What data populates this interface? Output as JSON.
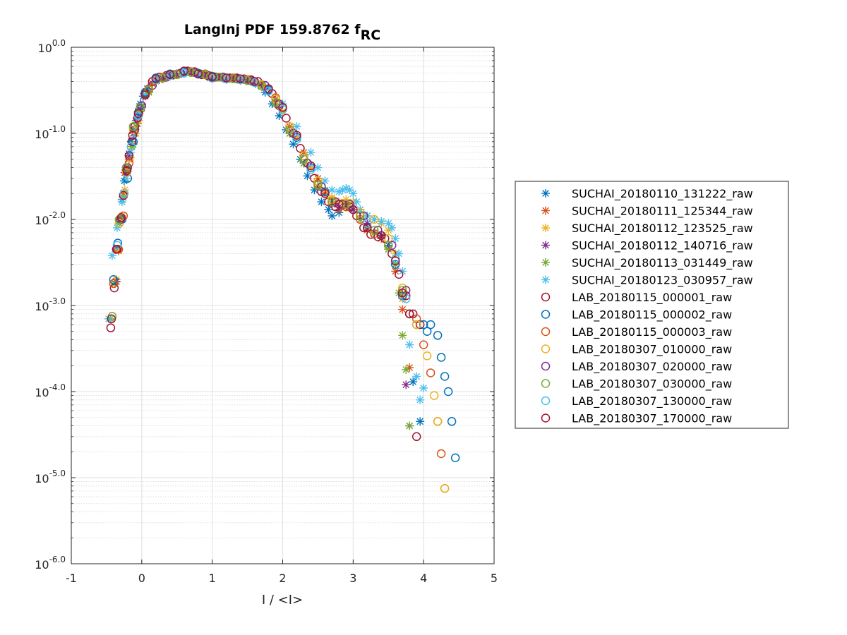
{
  "chart_data": {
    "type": "scatter",
    "title": "LangInj PDF 159.8762 f",
    "title_subscript": "RC",
    "xlabel": "I / <I>",
    "ylabel": "",
    "xlim": [
      -1,
      5
    ],
    "ylim": [
      1e-06,
      1
    ],
    "yscale": "log",
    "grid": true,
    "minor_grid": true,
    "legend_position": "right-outside",
    "x_ticks": [
      {
        "value": -1,
        "label": "-1"
      },
      {
        "value": 0,
        "label": "0"
      },
      {
        "value": 1,
        "label": "1"
      },
      {
        "value": 2,
        "label": "2"
      },
      {
        "value": 3,
        "label": "3"
      },
      {
        "value": 4,
        "label": "4"
      },
      {
        "value": 5,
        "label": "5"
      }
    ],
    "y_ticks": [
      {
        "value": 1,
        "base": "10",
        "exp": "0.0"
      },
      {
        "value": 0.1,
        "base": "10",
        "exp": "-1.0"
      },
      {
        "value": 0.01,
        "base": "10",
        "exp": "-2.0"
      },
      {
        "value": 0.001,
        "base": "10",
        "exp": "-3.0"
      },
      {
        "value": 0.0001,
        "base": "10",
        "exp": "-4.0"
      },
      {
        "value": 1e-05,
        "base": "10",
        "exp": "-5.0"
      },
      {
        "value": 1e-06,
        "base": "10",
        "exp": "-6.0"
      }
    ],
    "series": [
      {
        "name": "SUCHAI_20180110_131222_raw",
        "marker": "star",
        "color": "#0072BD",
        "x": [
          -0.38,
          -0.34,
          -0.31,
          -0.28,
          -0.25,
          -0.22,
          -0.18,
          -0.15,
          -0.12,
          -0.08,
          -0.05,
          -0.02,
          0.02,
          0.08,
          0.15,
          0.25,
          0.35,
          0.45,
          0.55,
          0.65,
          0.75,
          0.85,
          0.95,
          1.05,
          1.15,
          1.25,
          1.35,
          1.45,
          1.55,
          1.65,
          1.75,
          1.85,
          1.95,
          2.05,
          2.15,
          2.25,
          2.35,
          2.45,
          2.55,
          2.65,
          2.7,
          2.8,
          2.9,
          3.0,
          3.1,
          3.2,
          3.3,
          3.4,
          3.5,
          3.6,
          3.7,
          3.85,
          3.95
        ],
        "y": [
          0.0018,
          0.0045,
          0.01,
          0.017,
          0.028,
          0.04,
          0.058,
          0.08,
          0.11,
          0.14,
          0.18,
          0.22,
          0.27,
          0.33,
          0.38,
          0.42,
          0.45,
          0.47,
          0.5,
          0.52,
          0.51,
          0.49,
          0.46,
          0.45,
          0.44,
          0.44,
          0.43,
          0.42,
          0.4,
          0.37,
          0.3,
          0.22,
          0.16,
          0.11,
          0.075,
          0.05,
          0.032,
          0.022,
          0.016,
          0.013,
          0.011,
          0.012,
          0.014,
          0.013,
          0.01,
          0.008,
          0.007,
          0.0065,
          0.005,
          0.003,
          0.0012,
          0.00013,
          4.5e-05
        ]
      },
      {
        "name": "SUCHAI_20180111_125344_raw",
        "marker": "star",
        "color": "#D95319",
        "x": [
          -0.37,
          -0.33,
          -0.3,
          -0.26,
          -0.22,
          -0.18,
          -0.14,
          -0.1,
          -0.06,
          -0.02,
          0.05,
          0.15,
          0.3,
          0.5,
          0.7,
          0.9,
          1.1,
          1.3,
          1.5,
          1.7,
          1.9,
          2.1,
          2.3,
          2.5,
          2.6,
          2.7,
          2.8,
          2.9,
          3.0,
          3.1,
          3.2,
          3.3,
          3.4,
          3.5,
          3.6,
          3.7,
          3.8
        ],
        "y": [
          0.0019,
          0.0043,
          0.0095,
          0.02,
          0.035,
          0.05,
          0.07,
          0.1,
          0.13,
          0.18,
          0.27,
          0.38,
          0.44,
          0.48,
          0.52,
          0.49,
          0.45,
          0.44,
          0.41,
          0.36,
          0.25,
          0.12,
          0.06,
          0.03,
          0.02,
          0.015,
          0.013,
          0.014,
          0.013,
          0.01,
          0.0075,
          0.007,
          0.006,
          0.0045,
          0.0025,
          0.0009,
          0.00019
        ]
      },
      {
        "name": "SUCHAI_20180112_123525_raw",
        "marker": "star",
        "color": "#EDB120",
        "x": [
          -0.36,
          -0.32,
          -0.28,
          -0.24,
          -0.2,
          -0.16,
          -0.12,
          -0.08,
          -0.04,
          0.0,
          0.1,
          0.2,
          0.4,
          0.6,
          0.8,
          1.0,
          1.2,
          1.4,
          1.6,
          1.8,
          2.0,
          2.2,
          2.4,
          2.6,
          2.7,
          2.8,
          2.9,
          3.0,
          3.1,
          3.2,
          3.3,
          3.4,
          3.5,
          3.6,
          3.7
        ],
        "y": [
          0.002,
          0.0045,
          0.011,
          0.022,
          0.036,
          0.052,
          0.074,
          0.1,
          0.14,
          0.2,
          0.31,
          0.4,
          0.46,
          0.5,
          0.51,
          0.47,
          0.44,
          0.43,
          0.4,
          0.33,
          0.18,
          0.09,
          0.04,
          0.022,
          0.018,
          0.016,
          0.017,
          0.016,
          0.013,
          0.011,
          0.01,
          0.009,
          0.0075,
          0.004,
          0.0012
        ]
      },
      {
        "name": "SUCHAI_20180112_140716_raw",
        "marker": "star",
        "color": "#7E2F8E",
        "x": [
          -0.36,
          -0.3,
          -0.24,
          -0.18,
          -0.12,
          -0.06,
          0.0,
          0.1,
          0.3,
          0.5,
          0.7,
          0.9,
          1.1,
          1.3,
          1.5,
          1.7,
          1.9,
          2.1,
          2.3,
          2.5,
          2.7,
          2.8,
          2.9,
          3.0,
          3.2,
          3.4,
          3.6,
          3.75,
          3.8
        ],
        "y": [
          0.0019,
          0.01,
          0.035,
          0.055,
          0.1,
          0.15,
          0.2,
          0.3,
          0.43,
          0.48,
          0.51,
          0.48,
          0.45,
          0.43,
          0.41,
          0.35,
          0.22,
          0.1,
          0.045,
          0.024,
          0.015,
          0.014,
          0.015,
          0.013,
          0.009,
          0.0065,
          0.003,
          0.00012,
          4e-05
        ]
      },
      {
        "name": "SUCHAI_20180113_031449_raw",
        "marker": "star",
        "color": "#77AC30",
        "x": [
          -0.44,
          -0.38,
          -0.32,
          -0.26,
          -0.2,
          -0.14,
          -0.08,
          -0.02,
          0.1,
          0.3,
          0.5,
          0.7,
          0.9,
          1.1,
          1.3,
          1.5,
          1.7,
          1.9,
          2.1,
          2.3,
          2.5,
          2.7,
          2.9,
          3.1,
          3.3,
          3.5,
          3.6,
          3.65,
          3.7,
          3.75,
          3.8
        ],
        "y": [
          0.0007,
          0.0018,
          0.009,
          0.018,
          0.04,
          0.07,
          0.12,
          0.19,
          0.3,
          0.44,
          0.48,
          0.51,
          0.48,
          0.45,
          0.43,
          0.41,
          0.35,
          0.22,
          0.1,
          0.045,
          0.024,
          0.016,
          0.015,
          0.01,
          0.007,
          0.0045,
          0.003,
          0.0014,
          0.00045,
          0.00018,
          4e-05
        ]
      },
      {
        "name": "SUCHAI_20180123_030957_raw",
        "marker": "star",
        "color": "#4DBEEE",
        "x": [
          -0.47,
          -0.42,
          -0.35,
          -0.28,
          -0.22,
          -0.16,
          -0.1,
          -0.04,
          0.05,
          0.2,
          0.4,
          0.6,
          0.8,
          1.0,
          1.2,
          1.4,
          1.6,
          1.8,
          2.0,
          2.2,
          2.4,
          2.5,
          2.6,
          2.7,
          2.8,
          2.85,
          2.9,
          2.95,
          3.0,
          3.05,
          3.1,
          3.2,
          3.3,
          3.4,
          3.5,
          3.55,
          3.6,
          3.65,
          3.7,
          3.8,
          3.9,
          3.95,
          4.0
        ],
        "y": [
          0.0007,
          0.0038,
          0.008,
          0.016,
          0.03,
          0.06,
          0.1,
          0.16,
          0.28,
          0.42,
          0.46,
          0.5,
          0.48,
          0.43,
          0.42,
          0.41,
          0.39,
          0.33,
          0.22,
          0.12,
          0.06,
          0.04,
          0.028,
          0.022,
          0.021,
          0.022,
          0.023,
          0.022,
          0.02,
          0.016,
          0.013,
          0.011,
          0.01,
          0.0095,
          0.009,
          0.008,
          0.006,
          0.004,
          0.0025,
          0.00035,
          0.00015,
          8e-05,
          0.00011
        ]
      },
      {
        "name": "LAB_20180115_000001_raw",
        "marker": "circle",
        "color": "#A2142F",
        "x": [
          -0.44,
          -0.39,
          -0.35,
          -0.3,
          -0.26,
          -0.22,
          -0.18,
          -0.14,
          -0.1,
          -0.06,
          -0.02,
          0.05,
          0.15,
          0.25,
          0.35,
          0.45,
          0.55,
          0.65,
          0.75,
          0.85,
          0.95,
          1.05,
          1.15,
          1.25,
          1.35,
          1.45,
          1.55,
          1.65,
          1.75,
          1.85,
          1.95,
          2.05,
          2.15,
          2.25,
          2.35,
          2.45,
          2.55,
          2.65,
          2.75,
          2.85,
          2.95,
          3.05,
          3.15,
          3.25,
          3.35,
          3.45,
          3.55,
          3.65,
          3.75,
          3.85,
          3.95
        ],
        "y": [
          0.00055,
          0.0016,
          0.0045,
          0.01,
          0.019,
          0.036,
          0.055,
          0.08,
          0.11,
          0.15,
          0.2,
          0.29,
          0.4,
          0.45,
          0.47,
          0.48,
          0.5,
          0.53,
          0.52,
          0.48,
          0.46,
          0.45,
          0.45,
          0.44,
          0.44,
          0.43,
          0.42,
          0.4,
          0.36,
          0.29,
          0.21,
          0.15,
          0.1,
          0.067,
          0.045,
          0.03,
          0.021,
          0.016,
          0.014,
          0.015,
          0.014,
          0.011,
          0.008,
          0.0067,
          0.0063,
          0.006,
          0.004,
          0.0023,
          0.0013,
          0.0008,
          0.0006
        ]
      },
      {
        "name": "LAB_20180115_000002_raw",
        "marker": "circle",
        "color": "#0072BD",
        "x": [
          -0.4,
          -0.34,
          -0.28,
          -0.2,
          -0.12,
          -0.04,
          0.05,
          0.2,
          0.4,
          0.6,
          0.8,
          1.0,
          1.2,
          1.4,
          1.6,
          1.8,
          2.0,
          2.2,
          2.4,
          2.6,
          2.8,
          3.0,
          3.2,
          3.4,
          3.6,
          3.7,
          3.8,
          3.9,
          4.0,
          4.05,
          4.1,
          4.2,
          4.25,
          4.3,
          4.35,
          4.4,
          4.45
        ],
        "y": [
          0.002,
          0.0053,
          0.01,
          0.03,
          0.08,
          0.18,
          0.3,
          0.44,
          0.49,
          0.52,
          0.5,
          0.46,
          0.44,
          0.43,
          0.4,
          0.32,
          0.2,
          0.09,
          0.04,
          0.021,
          0.015,
          0.013,
          0.008,
          0.0065,
          0.003,
          0.0013,
          0.0008,
          0.0006,
          0.0006,
          0.0005,
          0.0006,
          0.00045,
          0.00025,
          0.00015,
          0.0001,
          4.5e-05,
          1.7e-05
        ]
      },
      {
        "name": "LAB_20180115_000003_raw",
        "marker": "circle",
        "color": "#D95319",
        "x": [
          -0.4,
          -0.33,
          -0.26,
          -0.18,
          -0.1,
          -0.02,
          0.1,
          0.3,
          0.5,
          0.7,
          0.9,
          1.1,
          1.3,
          1.5,
          1.7,
          1.9,
          2.1,
          2.3,
          2.5,
          2.7,
          2.9,
          3.1,
          3.3,
          3.5,
          3.7,
          3.8,
          3.9,
          4.0,
          4.1,
          4.2,
          4.25,
          4.3
        ],
        "y": [
          0.0018,
          0.0045,
          0.011,
          0.045,
          0.12,
          0.2,
          0.33,
          0.45,
          0.49,
          0.52,
          0.49,
          0.45,
          0.44,
          0.42,
          0.37,
          0.26,
          0.12,
          0.055,
          0.026,
          0.016,
          0.014,
          0.01,
          0.0068,
          0.005,
          0.0014,
          0.0008,
          0.0007,
          0.00035,
          0.000165,
          4.5e-05,
          1.9e-05,
          7.5e-06
        ]
      },
      {
        "name": "LAB_20180307_010000_raw",
        "marker": "circle",
        "color": "#EDB120",
        "x": [
          -0.32,
          -0.22,
          -0.12,
          -0.02,
          0.1,
          0.3,
          0.5,
          0.7,
          0.9,
          1.1,
          1.3,
          1.5,
          1.7,
          1.9,
          2.1,
          2.3,
          2.5,
          2.7,
          2.9,
          3.1,
          3.3,
          3.5,
          3.7,
          3.9,
          4.05,
          4.15,
          4.2,
          4.3
        ],
        "y": [
          0.009,
          0.035,
          0.11,
          0.2,
          0.32,
          0.44,
          0.48,
          0.51,
          0.48,
          0.45,
          0.43,
          0.41,
          0.37,
          0.25,
          0.12,
          0.055,
          0.028,
          0.017,
          0.015,
          0.012,
          0.01,
          0.006,
          0.0016,
          0.0006,
          0.00026,
          9e-05,
          4.5e-05,
          7.5e-06
        ]
      },
      {
        "name": "LAB_20180307_020000_raw",
        "marker": "circle",
        "color": "#7E2F8E",
        "x": [
          -0.3,
          -0.2,
          -0.1,
          0.0,
          0.15,
          0.35,
          0.55,
          0.75,
          0.95,
          1.15,
          1.35,
          1.55,
          1.75,
          1.95,
          2.15,
          2.35,
          2.55,
          2.75,
          2.95,
          3.15,
          3.35,
          3.55,
          3.75
        ],
        "y": [
          0.01,
          0.04,
          0.12,
          0.21,
          0.36,
          0.45,
          0.5,
          0.51,
          0.47,
          0.45,
          0.43,
          0.41,
          0.36,
          0.22,
          0.1,
          0.045,
          0.024,
          0.016,
          0.015,
          0.011,
          0.0075,
          0.005,
          0.0015
        ]
      },
      {
        "name": "LAB_20180307_030000_raw",
        "marker": "circle",
        "color": "#77AC30",
        "x": [
          -0.42,
          -0.32,
          -0.22,
          -0.12,
          -0.02,
          0.1,
          0.3,
          0.5,
          0.7,
          0.9,
          1.1,
          1.3,
          1.5,
          1.7,
          1.9,
          2.1,
          2.3,
          2.5,
          2.7,
          2.9,
          3.1,
          3.3,
          3.5,
          3.7
        ],
        "y": [
          0.00075,
          0.01,
          0.04,
          0.12,
          0.2,
          0.32,
          0.44,
          0.48,
          0.51,
          0.48,
          0.45,
          0.43,
          0.41,
          0.36,
          0.23,
          0.11,
          0.05,
          0.025,
          0.016,
          0.015,
          0.011,
          0.0075,
          0.005,
          0.0015
        ]
      },
      {
        "name": "LAB_20180307_130000_raw",
        "marker": "circle",
        "color": "#4DBEEE",
        "x": [
          -0.35,
          -0.25,
          -0.15,
          -0.05,
          0.05,
          0.2,
          0.4,
          0.6,
          0.8,
          1.0,
          1.2,
          1.4,
          1.6,
          1.8,
          2.0,
          2.2,
          2.4,
          2.6,
          2.8,
          3.0,
          3.2,
          3.4,
          3.6,
          3.75
        ],
        "y": [
          0.005,
          0.02,
          0.07,
          0.16,
          0.28,
          0.42,
          0.47,
          0.5,
          0.49,
          0.44,
          0.43,
          0.42,
          0.39,
          0.31,
          0.19,
          0.085,
          0.038,
          0.02,
          0.015,
          0.013,
          0.009,
          0.0065,
          0.0035,
          0.0012
        ]
      },
      {
        "name": "LAB_20180307_170000_raw",
        "marker": "circle",
        "color": "#A2142F",
        "x": [
          -0.43,
          -0.36,
          -0.29,
          -0.21,
          -0.13,
          -0.05,
          0.05,
          0.2,
          0.4,
          0.6,
          0.8,
          1.0,
          1.2,
          1.4,
          1.6,
          1.8,
          2.0,
          2.2,
          2.4,
          2.6,
          2.8,
          3.0,
          3.2,
          3.4,
          3.6,
          3.7,
          3.8,
          3.9
        ],
        "y": [
          0.0007,
          0.0045,
          0.0105,
          0.037,
          0.095,
          0.17,
          0.28,
          0.43,
          0.48,
          0.53,
          0.49,
          0.45,
          0.44,
          0.43,
          0.4,
          0.33,
          0.2,
          0.095,
          0.042,
          0.02,
          0.015,
          0.013,
          0.008,
          0.0065,
          0.0033,
          0.0014,
          0.0008,
          3e-05
        ]
      }
    ]
  }
}
